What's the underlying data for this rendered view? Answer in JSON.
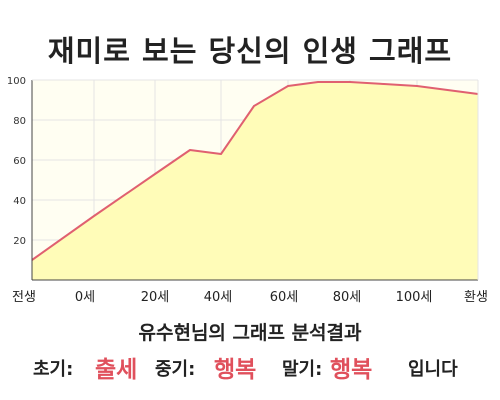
{
  "title": "재미로 보는 당신의 인생 그래프",
  "chart_data": {
    "type": "area",
    "title": "재미로 보는 당신의 인생 그래프",
    "xlabel": "",
    "ylabel": "",
    "x_tick_labels": [
      "전생",
      "0세",
      "20세",
      "40세",
      "60세",
      "80세",
      "100세",
      "환생"
    ],
    "y_ticks": [
      20,
      40,
      60,
      80,
      100
    ],
    "ylim": [
      0,
      100
    ],
    "grid": true,
    "series": [
      {
        "x": [
          "전생",
          "0세",
          "20세",
          "30세",
          "40세",
          "50세",
          "60세",
          "70세",
          "80세",
          "90세",
          "100세",
          "환생"
        ],
        "values": [
          10,
          32,
          53,
          65,
          63,
          87,
          97,
          99,
          99,
          98,
          97,
          93
        ]
      }
    ],
    "colors": {
      "line": "#e06070",
      "fill": "#fffcb8",
      "plot_bg": "#fffef2",
      "grid": "#e4e4e4",
      "axis": "#444444"
    }
  },
  "summary": {
    "title": "유수현님의 그래프 분석결과",
    "early_label": "초기:",
    "early_value": "출세",
    "middle_label": "중기:",
    "middle_value": "행복",
    "late_label": "말기:",
    "late_value": "행복",
    "closing": "입니다"
  }
}
